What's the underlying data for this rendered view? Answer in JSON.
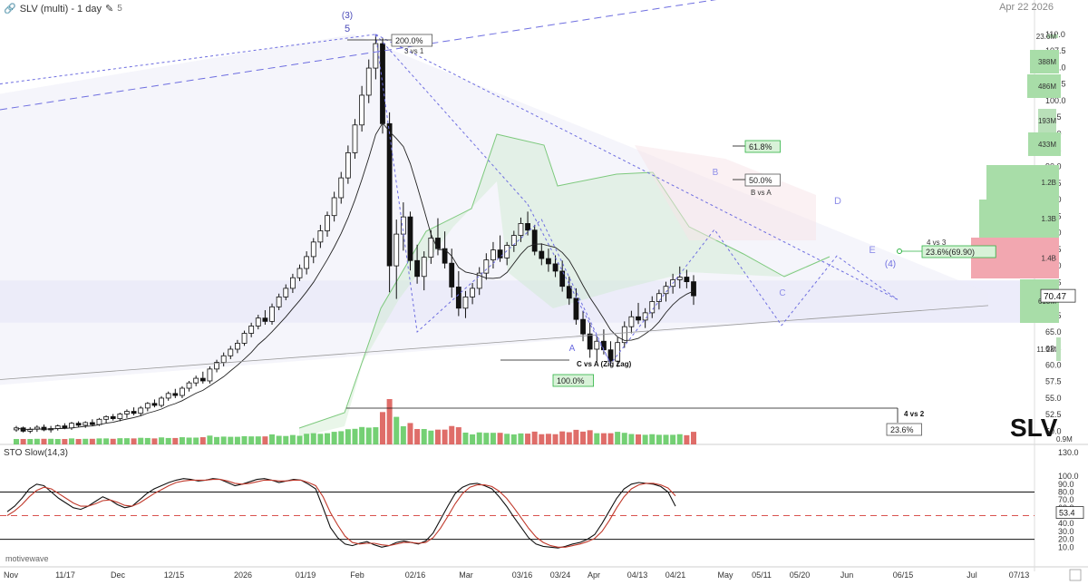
{
  "header": {
    "title": "SLV (multi) - 1 day",
    "version_count": "5",
    "date_label": "Apr 22 2026",
    "symbol_watermark": "SLV",
    "brand": "motivewave"
  },
  "colors": {
    "up": "#2fb344",
    "down": "#d9534f",
    "wave": "#6e6ee0",
    "cloud": "#7dc97d"
  },
  "chart_data": [
    {
      "type": "candlestick",
      "title": "SLV (multi) - 1 day",
      "x_tick_labels": [
        "Nov",
        "11/17",
        "Dec",
        "12/15",
        "2026",
        "01/19",
        "Feb",
        "02/16",
        "Mar",
        "03/16",
        "03/24",
        "Apr",
        "04/13",
        "04/21",
        "May",
        "05/11",
        "05/20",
        "Jun",
        "06/15",
        "Jul",
        "07/13"
      ],
      "y_tick_labels": [
        "110.0",
        "107.5",
        "105.0",
        "102.5",
        "100.0",
        "97.5",
        "95.0",
        "92.5",
        "90.0",
        "87.5",
        "85.0",
        "82.5",
        "80.0",
        "77.5",
        "75.0",
        "72.5",
        "70.0",
        "67.5",
        "65.0",
        "62.5",
        "60.0",
        "57.5",
        "55.0",
        "52.5",
        "50.0"
      ],
      "ylim": [
        48,
        113
      ],
      "last_price": "70.47",
      "candles": [
        [
          50.2,
          50.8,
          49.9,
          50.5
        ],
        [
          50.5,
          50.7,
          49.8,
          50.0
        ],
        [
          50.0,
          50.6,
          49.7,
          50.3
        ],
        [
          50.3,
          50.9,
          49.9,
          50.6
        ],
        [
          50.6,
          51.0,
          50.0,
          50.2
        ],
        [
          50.2,
          50.8,
          49.8,
          50.4
        ],
        [
          50.4,
          51.0,
          50.1,
          50.8
        ],
        [
          50.8,
          51.2,
          50.3,
          50.5
        ],
        [
          50.5,
          51.4,
          50.2,
          51.2
        ],
        [
          51.2,
          51.5,
          50.6,
          50.9
        ],
        [
          50.9,
          51.5,
          50.5,
          51.3
        ],
        [
          51.3,
          51.8,
          50.8,
          51.0
        ],
        [
          51.0,
          52.0,
          50.8,
          51.8
        ],
        [
          51.8,
          52.4,
          51.2,
          52.2
        ],
        [
          52.2,
          52.6,
          51.6,
          51.9
        ],
        [
          51.9,
          52.8,
          51.5,
          52.6
        ],
        [
          52.6,
          53.3,
          52.0,
          53.0
        ],
        [
          53.0,
          53.6,
          52.4,
          52.7
        ],
        [
          52.7,
          53.8,
          52.3,
          53.5
        ],
        [
          53.5,
          54.4,
          53.0,
          54.2
        ],
        [
          54.2,
          54.8,
          53.6,
          53.9
        ],
        [
          53.9,
          55.3,
          53.6,
          55.0
        ],
        [
          55.0,
          56.0,
          54.6,
          55.7
        ],
        [
          55.7,
          56.4,
          55.0,
          55.4
        ],
        [
          55.4,
          56.8,
          55.0,
          56.5
        ],
        [
          56.5,
          57.6,
          56.0,
          57.3
        ],
        [
          57.3,
          58.4,
          56.8,
          58.0
        ],
        [
          58.0,
          59.0,
          57.2,
          57.6
        ],
        [
          57.6,
          59.8,
          57.2,
          59.4
        ],
        [
          59.4,
          60.8,
          58.9,
          60.4
        ],
        [
          60.4,
          61.9,
          59.8,
          61.4
        ],
        [
          61.4,
          62.9,
          60.9,
          62.4
        ],
        [
          62.4,
          63.8,
          61.8,
          63.3
        ],
        [
          63.3,
          65.2,
          62.9,
          64.8
        ],
        [
          64.8,
          66.4,
          64.2,
          65.9
        ],
        [
          65.9,
          67.6,
          65.4,
          67.1
        ],
        [
          67.1,
          68.3,
          66.1,
          66.6
        ],
        [
          66.6,
          69.3,
          66.1,
          68.8
        ],
        [
          68.8,
          70.8,
          68.3,
          70.3
        ],
        [
          70.3,
          72.2,
          69.8,
          71.6
        ],
        [
          71.6,
          73.8,
          70.9,
          73.2
        ],
        [
          73.2,
          75.2,
          72.7,
          74.6
        ],
        [
          74.6,
          77.2,
          73.7,
          76.4
        ],
        [
          76.4,
          79.2,
          75.4,
          78.6
        ],
        [
          78.6,
          81.2,
          77.7,
          80.3
        ],
        [
          80.3,
          83.2,
          79.4,
          82.6
        ],
        [
          82.6,
          86.2,
          81.7,
          85.3
        ],
        [
          85.3,
          89.2,
          84.4,
          88.3
        ],
        [
          88.3,
          93.2,
          87.4,
          92.1
        ],
        [
          92.1,
          97.2,
          91.2,
          96.3
        ],
        [
          96.3,
          102.2,
          95.3,
          100.8
        ],
        [
          100.8,
          106.2,
          99.6,
          104.9
        ],
        [
          104.9,
          110.0,
          103.2,
          108.6
        ],
        [
          108.6,
          109.4,
          95.0,
          96.5
        ],
        [
          96.5,
          98.2,
          71.0,
          75.0
        ],
        [
          75.0,
          82.0,
          70.0,
          79.8
        ],
        [
          79.8,
          84.6,
          77.3,
          82.4
        ],
        [
          82.4,
          83.2,
          74.3,
          75.8
        ],
        [
          75.8,
          78.2,
          72.3,
          73.4
        ],
        [
          73.4,
          77.2,
          71.3,
          76.3
        ],
        [
          76.3,
          80.4,
          75.3,
          79.2
        ],
        [
          79.2,
          82.2,
          76.6,
          77.6
        ],
        [
          77.6,
          80.2,
          74.6,
          75.4
        ],
        [
          75.4,
          77.6,
          70.2,
          71.8
        ],
        [
          71.8,
          74.2,
          67.4,
          68.6
        ],
        [
          68.6,
          71.2,
          67.1,
          70.3
        ],
        [
          70.3,
          72.4,
          69.2,
          71.6
        ],
        [
          71.6,
          74.8,
          70.6,
          73.9
        ],
        [
          73.9,
          76.9,
          72.9,
          75.9
        ],
        [
          75.9,
          78.6,
          74.6,
          77.4
        ],
        [
          77.4,
          79.6,
          75.6,
          76.2
        ],
        [
          76.2,
          78.6,
          75.1,
          78.1
        ],
        [
          78.1,
          80.3,
          77.1,
          79.6
        ],
        [
          79.6,
          82.3,
          78.6,
          81.4
        ],
        [
          81.4,
          83.2,
          79.6,
          80.4
        ],
        [
          80.4,
          81.2,
          76.6,
          77.2
        ],
        [
          77.2,
          78.4,
          75.1,
          76.1
        ],
        [
          76.1,
          77.6,
          74.1,
          75.3
        ],
        [
          75.3,
          76.6,
          73.3,
          74.2
        ],
        [
          74.2,
          75.8,
          71.1,
          71.9
        ],
        [
          71.9,
          73.4,
          69.1,
          70.1
        ],
        [
          70.1,
          71.6,
          66.1,
          66.9
        ],
        [
          66.9,
          68.2,
          63.6,
          64.7
        ],
        [
          64.7,
          66.4,
          61.1,
          62.4
        ],
        [
          62.4,
          64.4,
          60.6,
          63.6
        ],
        [
          63.6,
          65.4,
          61.6,
          62.3
        ],
        [
          62.3,
          63.6,
          59.8,
          60.6
        ],
        [
          60.6,
          64.2,
          59.7,
          63.4
        ],
        [
          63.4,
          66.6,
          62.6,
          65.8
        ],
        [
          65.8,
          68.2,
          64.8,
          67.3
        ],
        [
          67.3,
          69.4,
          66.2,
          66.8
        ],
        [
          66.8,
          68.6,
          65.6,
          67.9
        ],
        [
          67.9,
          70.4,
          67.1,
          69.6
        ],
        [
          69.6,
          71.4,
          68.4,
          70.8
        ],
        [
          70.8,
          72.6,
          69.6,
          71.9
        ],
        [
          71.9,
          73.8,
          70.8,
          72.9
        ],
        [
          72.9,
          74.9,
          71.6,
          73.3
        ],
        [
          73.3,
          74.4,
          71.6,
          72.6
        ],
        [
          72.6,
          73.6,
          69.1,
          70.47
        ]
      ],
      "wave_labels": [
        "(3)",
        "5",
        "A",
        "B",
        "C",
        "D",
        "E",
        "(4)"
      ],
      "fib_labels": [
        "200.0%",
        "3 vs 1",
        "61.8%",
        "50.0%",
        "B vs A",
        "C vs A (Zig Zag)",
        "100.0%",
        "4 vs 2",
        "23.6%",
        "4 vs 3",
        "23.6%(69.90)"
      ],
      "volume_profile": [
        "23.6M",
        "388M",
        "486M",
        "193M",
        "433M",
        "1.2B",
        "1.3B",
        "1.4B",
        "613M",
        "11.2M"
      ],
      "volume_axis_label": "0.9M"
    },
    {
      "type": "line",
      "title": "STO Slow(14,3)",
      "y_tick_labels": [
        "130.0",
        "100.0",
        "90.0",
        "80.0",
        "70.0",
        "60.0",
        "50.0",
        "40.0",
        "30.0",
        "20.0",
        "10.0"
      ],
      "ylim": [
        0,
        130
      ],
      "last_value": "53.4",
      "reference_lines": [
        80,
        50,
        20
      ],
      "series": [
        {
          "values": [
            55,
            62,
            72,
            84,
            90,
            88,
            80,
            72,
            66,
            60,
            58,
            62,
            68,
            74,
            70,
            64,
            60,
            62,
            70,
            78,
            84,
            88,
            92,
            95,
            97,
            96,
            94,
            95,
            97,
            96,
            92,
            88,
            90,
            93,
            96,
            97,
            95,
            92,
            94,
            96,
            95,
            90,
            84,
            60,
            35,
            22,
            14,
            12,
            15,
            17,
            13,
            10,
            12,
            16,
            18,
            16,
            14,
            18,
            28,
            45,
            62,
            78,
            86,
            90,
            91,
            88,
            84,
            74,
            62,
            48,
            35,
            22,
            14,
            11,
            10,
            9,
            11,
            14,
            16,
            20,
            26,
            40,
            56,
            72,
            84,
            90,
            92,
            91,
            90,
            87,
            80,
            62
          ]
        },
        {
          "values": [
            50,
            56,
            64,
            74,
            82,
            86,
            84,
            78,
            72,
            66,
            62,
            62,
            65,
            69,
            70,
            67,
            63,
            62,
            66,
            72,
            78,
            83,
            88,
            92,
            94,
            95,
            95,
            95,
            96,
            96,
            94,
            91,
            90,
            91,
            93,
            95,
            95,
            94,
            94,
            95,
            95,
            92,
            88,
            74,
            54,
            38,
            24,
            16,
            14,
            15,
            15,
            13,
            12,
            14,
            16,
            16,
            15,
            16,
            22,
            34,
            49,
            65,
            78,
            86,
            89,
            89,
            87,
            81,
            72,
            60,
            47,
            34,
            23,
            16,
            12,
            10,
            10,
            12,
            14,
            17,
            21,
            30,
            44,
            60,
            74,
            84,
            89,
            91,
            91,
            89,
            85,
            75
          ]
        }
      ]
    }
  ]
}
